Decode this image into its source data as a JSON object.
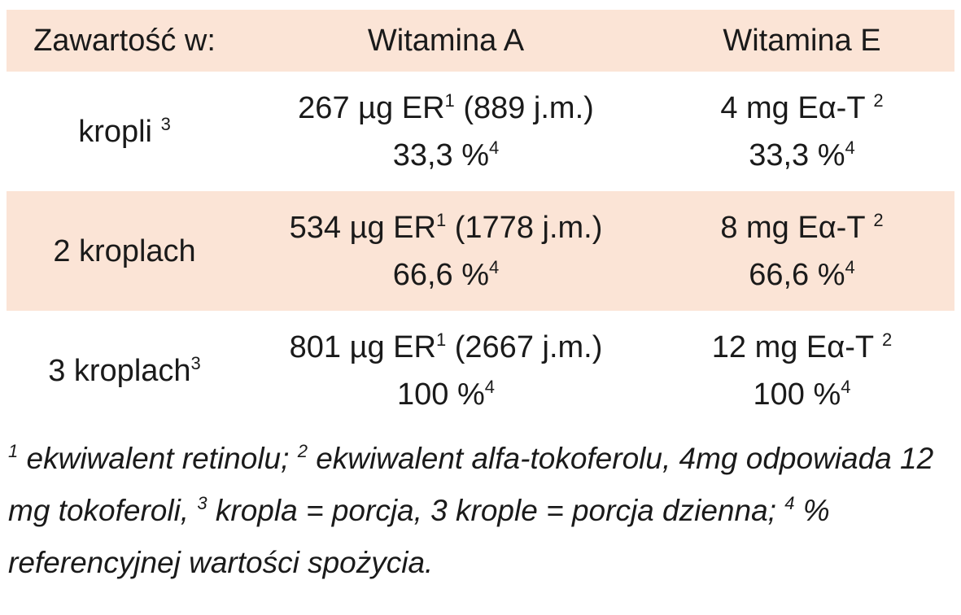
{
  "header": [
    "Zawartość w:",
    "Witamina A",
    "Witamina E"
  ],
  "rows": [
    {
      "label": [
        "kropli ",
        "3"
      ],
      "vitamin_a": [
        [
          "267 µg ER",
          "1",
          " (889 j.m.)"
        ],
        [
          "33,3 %",
          "4"
        ]
      ],
      "vitamin_e": [
        [
          "4 mg Eα-T ",
          "2"
        ],
        [
          "33,3 %",
          "4"
        ]
      ]
    },
    {
      "label": [
        "2 kroplach"
      ],
      "vitamin_a": [
        [
          "534 µg ER",
          "1",
          " (1778 j.m.)"
        ],
        [
          "66,6 %",
          "4"
        ]
      ],
      "vitamin_e": [
        [
          "8 mg Eα-T ",
          "2"
        ],
        [
          "66,6 %",
          "4"
        ]
      ]
    },
    {
      "label": [
        "3 kroplach",
        "3"
      ],
      "vitamin_a": [
        [
          "801 µg ER",
          "1",
          " (2667 j.m.)"
        ],
        [
          "100 %",
          "4"
        ]
      ],
      "vitamin_e": [
        [
          "12 mg Eα-T ",
          "2"
        ],
        [
          "100 %",
          "4"
        ]
      ]
    }
  ],
  "footnotes": [
    {
      "mark": "1",
      "text": " ekwiwalent retinolu;"
    },
    {
      "mark": "2",
      "text": " ekwiwalent alfa-tokoferolu, 4mg odpowiada 12 mg tokoferoli,"
    },
    {
      "mark": "3",
      "text": " kropla = porcja, 3 krople = porcja dzienna;"
    },
    {
      "mark": "4",
      "text": " % referencyjnej wartości spożycia."
    }
  ]
}
